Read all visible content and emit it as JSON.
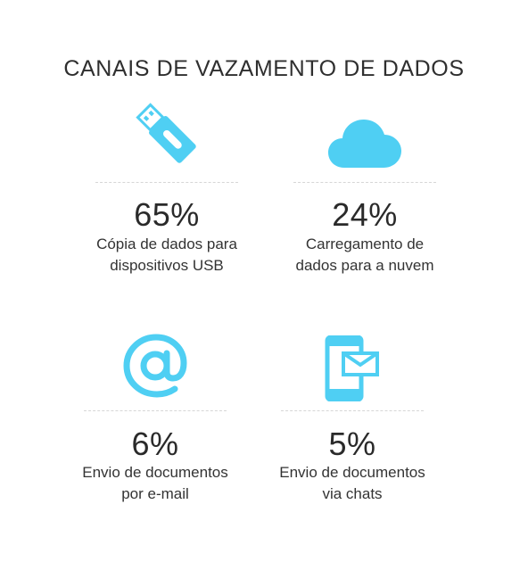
{
  "title": "CANAIS DE VAZAMENTO DE DADOS",
  "colors": {
    "accent": "#4fcff3",
    "text": "#2f2f2f",
    "divider": "#d6d6d6"
  },
  "stats": [
    {
      "icon": "usb-drive-icon",
      "percent": "65%",
      "label_line1": "Cópia de dados para",
      "label_line2": "dispositivos USB"
    },
    {
      "icon": "cloud-icon",
      "percent": "24%",
      "label_line1": "Carregamento de",
      "label_line2": "dados para a nuvem"
    },
    {
      "icon": "at-sign-icon",
      "percent": "6%",
      "label_line1": "Envio de documentos",
      "label_line2": "por e-mail"
    },
    {
      "icon": "mobile-message-icon",
      "percent": "5%",
      "label_line1": "Envio de documentos",
      "label_line2": "via chats"
    }
  ]
}
